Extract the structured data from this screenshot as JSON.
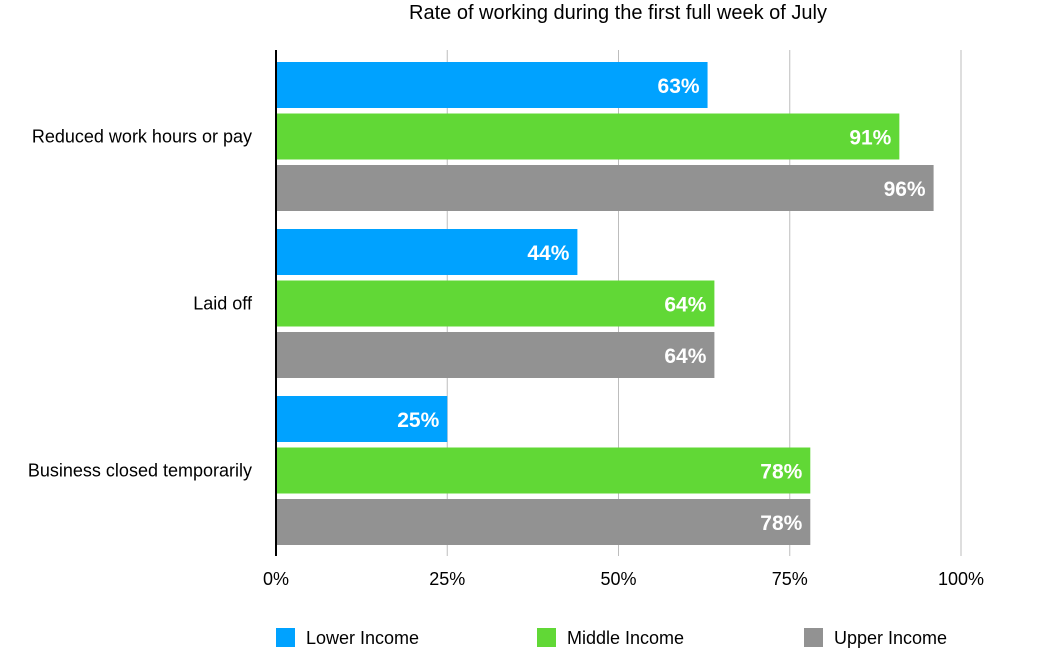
{
  "chart_data": {
    "type": "bar",
    "orientation": "horizontal",
    "title": "Rate of working during the first full week of July",
    "categories": [
      "Reduced work hours or pay",
      "Laid off",
      "Business closed temporarily"
    ],
    "series": [
      {
        "name": "Lower Income",
        "color": "#00a2ff",
        "values": [
          63,
          44,
          25
        ],
        "labels": [
          "63%",
          "44%",
          "25%"
        ]
      },
      {
        "name": "Middle Income",
        "color": "#61d836",
        "values": [
          91,
          64,
          78
        ],
        "labels": [
          "91%",
          "64%",
          "78%"
        ]
      },
      {
        "name": "Upper Income",
        "color": "#929292",
        "values": [
          96,
          64,
          78
        ],
        "labels": [
          "96%",
          "64%",
          "78%"
        ]
      }
    ],
    "xlim": [
      0,
      100
    ],
    "xticks": [
      0,
      25,
      50,
      75,
      100
    ],
    "xtick_labels": [
      "0%",
      "25%",
      "50%",
      "75%",
      "100%"
    ],
    "grid": true,
    "legend": "bottom"
  }
}
